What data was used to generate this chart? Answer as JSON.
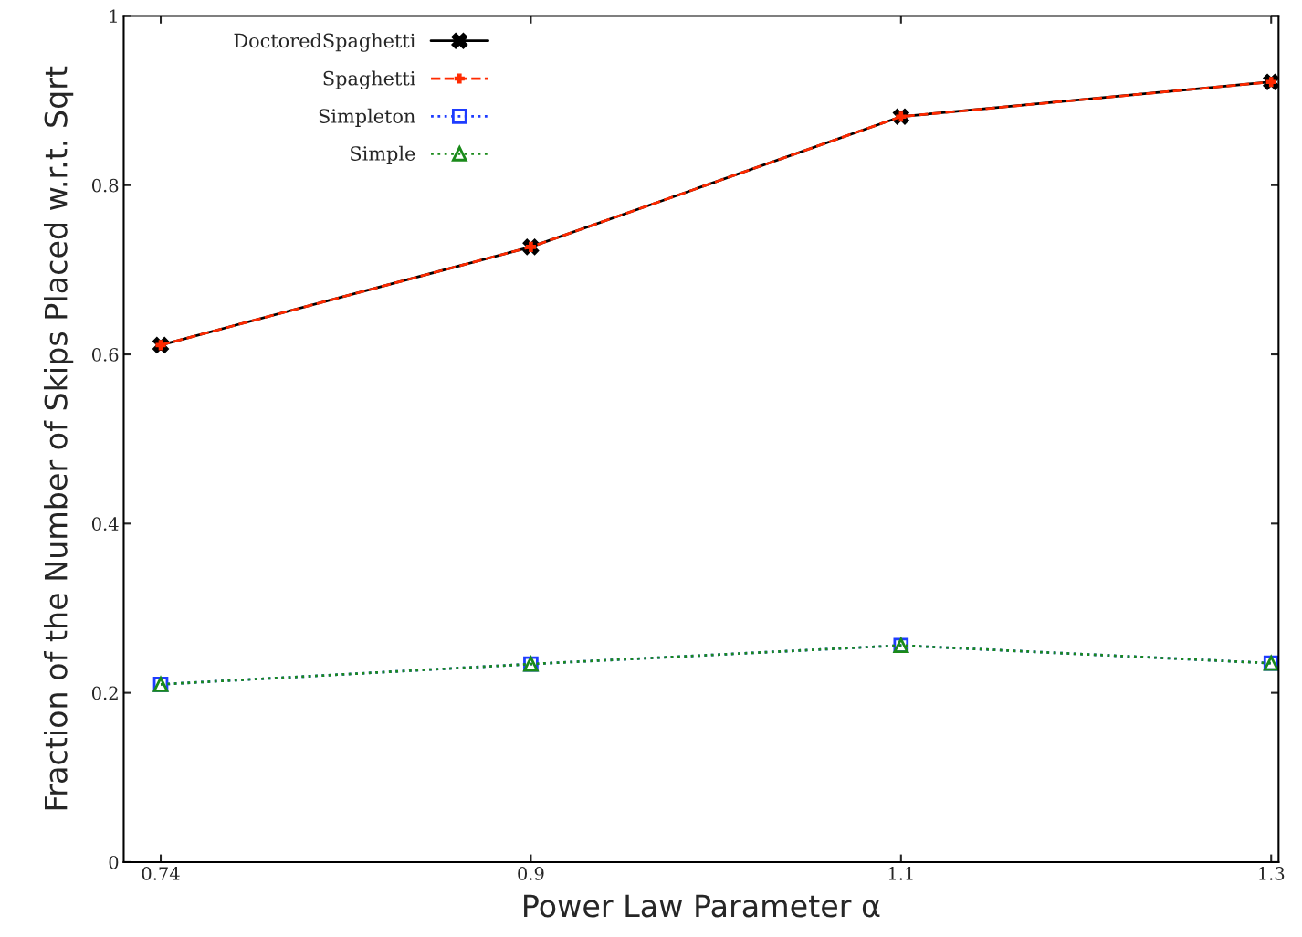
{
  "chart_data": {
    "type": "line",
    "xlabel": "Power Law Parameter α",
    "ylabel": "Fraction of the Number of Skips Placed w.r.t. Sqrt",
    "categories": [
      "0.74",
      "0.9",
      "1.1",
      "1.3"
    ],
    "ylim": [
      0,
      1
    ],
    "yticks": [
      0,
      0.2,
      0.4,
      0.6,
      0.8,
      1
    ],
    "grid": false,
    "legend": "top left",
    "series": [
      {
        "name": "DoctoredSpaghetti",
        "color": "#000000",
        "marker": "cross",
        "line_style": "solid",
        "values": [
          0.611,
          0.727,
          0.881,
          0.922
        ]
      },
      {
        "name": "Spaghetti",
        "color": "#ff2a00",
        "marker": "plus",
        "line_style": "dashed",
        "values": [
          0.611,
          0.727,
          0.881,
          0.922
        ]
      },
      {
        "name": "Simpleton",
        "color": "#1e3cff",
        "marker": "square",
        "line_style": "dotted",
        "values": [
          0.21,
          0.234,
          0.256,
          0.235
        ]
      },
      {
        "name": "Simple",
        "color": "#1a8a1a",
        "marker": "triangle",
        "line_style": "dotted",
        "values": [
          0.21,
          0.234,
          0.256,
          0.235
        ]
      }
    ]
  }
}
